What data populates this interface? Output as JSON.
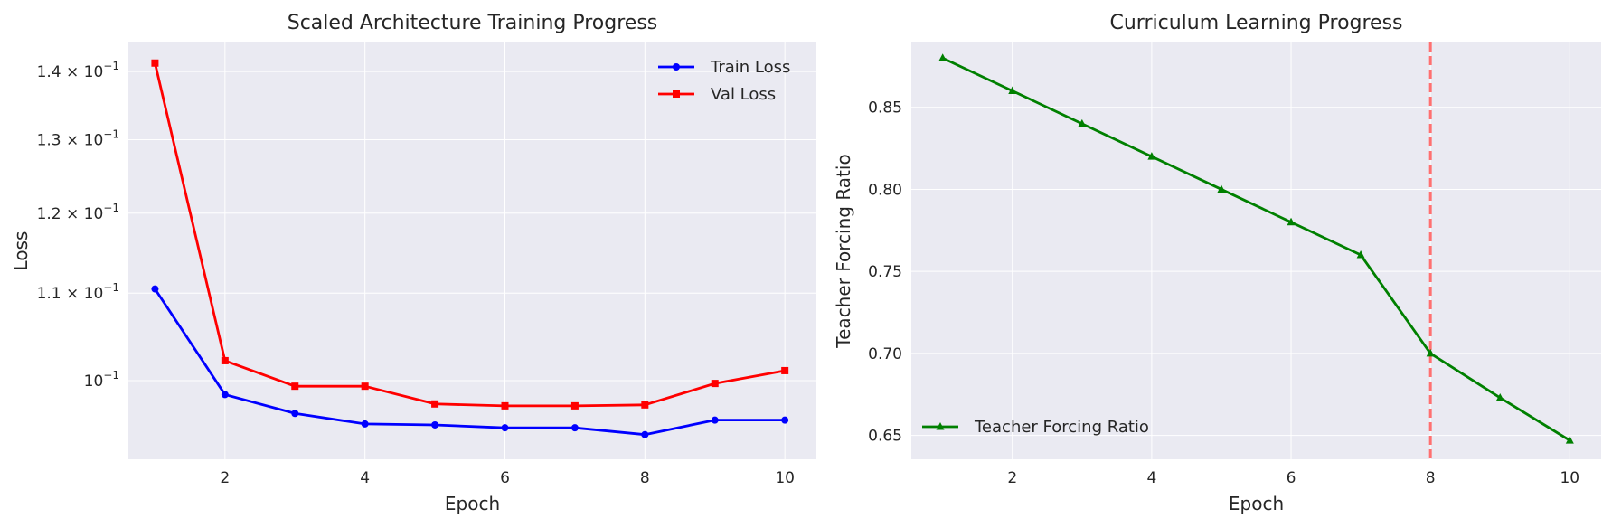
{
  "chart_data": [
    {
      "type": "line",
      "title": "Scaled Architecture Training Progress",
      "xlabel": "Epoch",
      "ylabel": "Loss",
      "yscale": "log",
      "grid": true,
      "legend_position": "top-right",
      "xlim": [
        0.62,
        10.45
      ],
      "ylim": [
        0.0918,
        0.1445
      ],
      "xticks": [
        2,
        4,
        6,
        8,
        10
      ],
      "yticks": [
        {
          "value": 0.1,
          "mantissa": "10",
          "exponent": "−1"
        },
        {
          "value": 0.11,
          "mantissa": "1.1 × 10",
          "exponent": "−1"
        },
        {
          "value": 0.12,
          "mantissa": "1.2 × 10",
          "exponent": "−1"
        },
        {
          "value": 0.13,
          "mantissa": "1.3 × 10",
          "exponent": "−1"
        },
        {
          "value": 0.14,
          "mantissa": "1.4 × 10",
          "exponent": "−1"
        }
      ],
      "x": [
        1,
        2,
        3,
        4,
        5,
        6,
        7,
        8,
        9,
        10
      ],
      "series": [
        {
          "name": "Train Loss",
          "color": "#0000ff",
          "marker": "circle",
          "values": [
            0.1105,
            0.0985,
            0.0965,
            0.0954,
            0.0953,
            0.095,
            0.095,
            0.0943,
            0.0958,
            0.0958
          ]
        },
        {
          "name": "Val Loss",
          "color": "#ff0000",
          "marker": "square",
          "values": [
            0.1413,
            0.1022,
            0.0994,
            0.0994,
            0.0975,
            0.0973,
            0.0973,
            0.0974,
            0.0997,
            0.1011
          ]
        }
      ]
    },
    {
      "type": "line",
      "title": "Curriculum Learning Progress",
      "xlabel": "Epoch",
      "ylabel": "Teacher Forcing Ratio",
      "grid": true,
      "legend_position": "bottom-left",
      "xlim": [
        0.55,
        10.45
      ],
      "ylim": [
        0.6355,
        0.8895
      ],
      "xticks": [
        2,
        4,
        6,
        8,
        10
      ],
      "yticks": [
        0.65,
        0.7,
        0.75,
        0.8,
        0.85
      ],
      "x": [
        1,
        2,
        3,
        4,
        5,
        6,
        7,
        8,
        9,
        10
      ],
      "series": [
        {
          "name": "Teacher Forcing Ratio",
          "color": "#008000",
          "marker": "triangle",
          "values": [
            0.88,
            0.86,
            0.84,
            0.82,
            0.8,
            0.78,
            0.76,
            0.7,
            0.673,
            0.647
          ]
        }
      ],
      "vline": {
        "x": 8,
        "color": "#ff7070",
        "style": "dashed"
      }
    }
  ]
}
